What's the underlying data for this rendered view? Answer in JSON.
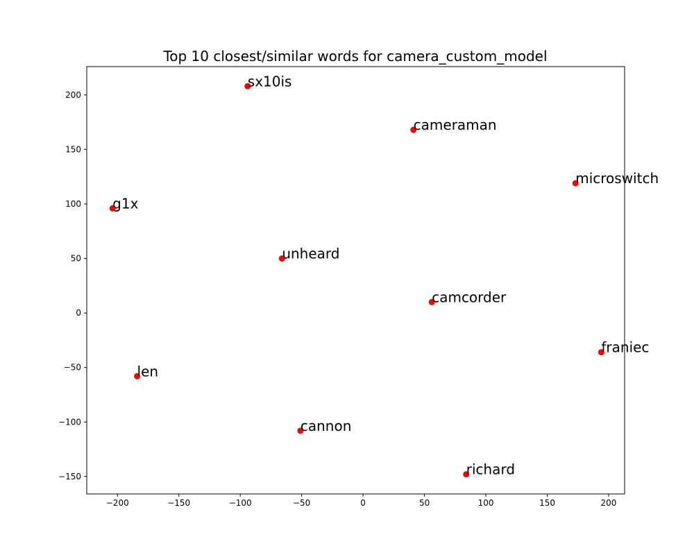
{
  "chart_data": {
    "type": "scatter",
    "title": "Top 10 closest/similar words for camera_custom_model",
    "xlabel": "",
    "ylabel": "",
    "xlim": [
      -225,
      213
    ],
    "ylim": [
      -166,
      226
    ],
    "xticks": [
      -200,
      -150,
      -100,
      -50,
      0,
      50,
      100,
      150,
      200
    ],
    "yticks": [
      -150,
      -100,
      -50,
      0,
      50,
      100,
      150,
      200
    ],
    "grid": false,
    "marker_color": "#ff0000",
    "points": [
      {
        "label": "sx10is",
        "x": -94,
        "y": 208
      },
      {
        "label": "cameraman",
        "x": 41,
        "y": 168
      },
      {
        "label": "microswitch",
        "x": 173,
        "y": 119
      },
      {
        "label": "g1x",
        "x": -204,
        "y": 96
      },
      {
        "label": "unheard",
        "x": -66,
        "y": 50
      },
      {
        "label": "camcorder",
        "x": 56,
        "y": 10
      },
      {
        "label": "franiec",
        "x": 194,
        "y": -36
      },
      {
        "label": "len",
        "x": -184,
        "y": -58
      },
      {
        "label": "cannon",
        "x": -51,
        "y": -108
      },
      {
        "label": "richard",
        "x": 84,
        "y": -148
      }
    ]
  }
}
